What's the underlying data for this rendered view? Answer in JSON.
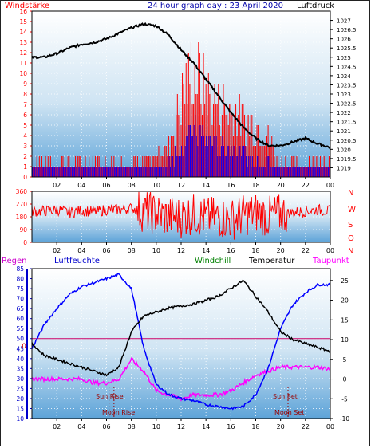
{
  "header": {
    "left_title": "Windstärke",
    "center_title": "24 hour graph day : 23 April 2020",
    "right_title": "Luftdruck"
  },
  "chart_data": [
    {
      "type": "line",
      "panel": "wind-pressure",
      "x_ticks": [
        "02",
        "04",
        "06",
        "08",
        "10",
        "12",
        "14",
        "16",
        "18",
        "20",
        "22",
        "00"
      ],
      "y_left": {
        "label": "Windstärke",
        "range": [
          0,
          16
        ],
        "ticks": [
          "0",
          "1",
          "2",
          "3",
          "4",
          "5",
          "6",
          "7",
          "8",
          "9",
          "10",
          "11",
          "12",
          "13",
          "14",
          "15",
          "16"
        ]
      },
      "y_right": {
        "label": "Luftdruck",
        "range": [
          1018.5,
          1027.5
        ],
        "ticks": [
          "1019",
          "1019.5",
          "1020",
          "1020.5",
          "1021",
          "1021.5",
          "1022",
          "1022.5",
          "1023",
          "1023.5",
          "1024",
          "1024.5",
          "1025",
          "1025.5",
          "1026",
          "1026.5",
          "1027"
        ]
      },
      "series": [
        {
          "name": "Luftdruck",
          "color": "#000000",
          "x": [
            0,
            1,
            2,
            3,
            4,
            5,
            6,
            7,
            8,
            9,
            10,
            11,
            12,
            13,
            14,
            15,
            16,
            17,
            18,
            19,
            20,
            21,
            22,
            23,
            24
          ],
          "values": [
            1025.0,
            1025.0,
            1025.2,
            1025.5,
            1025.7,
            1025.8,
            1026.0,
            1026.3,
            1026.6,
            1026.8,
            1026.7,
            1026.2,
            1025.4,
            1024.7,
            1023.8,
            1022.9,
            1022.0,
            1021.2,
            1020.6,
            1020.2,
            1020.2,
            1020.4,
            1020.6,
            1020.3,
            1020.1
          ]
        },
        {
          "name": "Böen",
          "color": "#ff0000",
          "x": [
            0,
            1,
            2,
            3,
            4,
            5,
            6,
            7,
            8,
            9,
            10,
            11,
            12,
            13,
            14,
            15,
            16,
            17,
            18,
            19,
            20,
            21,
            22,
            23,
            24
          ],
          "values": [
            2,
            2,
            2,
            2,
            2,
            2,
            2,
            2,
            2,
            2,
            3,
            4,
            11,
            15,
            12,
            10,
            9,
            8,
            7,
            5,
            2,
            2,
            2,
            3,
            2
          ]
        },
        {
          "name": "Mittel",
          "color": "#0000ff",
          "x": [
            0,
            1,
            2,
            3,
            4,
            5,
            6,
            7,
            8,
            9,
            10,
            11,
            12,
            13,
            14,
            15,
            16,
            17,
            18,
            19,
            20,
            21,
            22,
            23,
            24
          ],
          "values": [
            1,
            1,
            1,
            1,
            1,
            1,
            1,
            1,
            1,
            1,
            1,
            2,
            4,
            6,
            5,
            4,
            4,
            3,
            2,
            2,
            1,
            1,
            1,
            1,
            1
          ]
        }
      ]
    },
    {
      "type": "line",
      "panel": "wind-direction",
      "x_ticks": [
        "02",
        "04",
        "06",
        "08",
        "10",
        "12",
        "14",
        "16",
        "18",
        "20",
        "22",
        "00"
      ],
      "y_left": {
        "range": [
          0,
          360
        ],
        "ticks": [
          "0",
          "90",
          "180",
          "270",
          "360"
        ]
      },
      "y_right_labels": [
        "N",
        "W",
        "S",
        "O",
        "N"
      ],
      "series": [
        {
          "name": "Windrichtung",
          "color": "#ff0000",
          "x": [
            0,
            1,
            2,
            3,
            4,
            5,
            6,
            7,
            8,
            9,
            10,
            11,
            12,
            13,
            14,
            15,
            16,
            17,
            18,
            19,
            20,
            21,
            22,
            23,
            24
          ],
          "values": [
            220,
            220,
            230,
            210,
            225,
            215,
            230,
            230,
            240,
            220,
            200,
            180,
            180,
            200,
            170,
            180,
            160,
            190,
            210,
            180,
            200,
            210,
            220,
            230,
            220
          ]
        }
      ]
    },
    {
      "type": "line",
      "panel": "temperature-humidity",
      "x_ticks": [
        "02",
        "04",
        "06",
        "08",
        "10",
        "12",
        "14",
        "16",
        "18",
        "20",
        "22",
        "00"
      ],
      "y_left": {
        "label": "Luftfeuchte",
        "range": [
          10,
          85
        ],
        "ticks": [
          "10",
          "15",
          "20",
          "25",
          "30",
          "35",
          "40",
          "45",
          "50",
          "55",
          "60",
          "65",
          "70",
          "75",
          "80",
          "85"
        ]
      },
      "y_right": {
        "label": "Temperatur",
        "range": [
          -10,
          28
        ],
        "ticks": [
          "-10",
          "-5",
          "0",
          "5",
          "10",
          "15",
          "20",
          "25"
        ]
      },
      "labels": {
        "regen": "Regen",
        "luftfeuchte": "Luftfeuchte",
        "windchill": "Windchill",
        "temperatur": "Temperatur",
        "taupunkt": "Taupunkt",
        "zero_left": "0",
        "sun_rise": "Sun Rise",
        "moon_rise": "Moon Rise",
        "sun_set": "Sun Set",
        "moon_set": "Moon Set"
      },
      "events": {
        "sun_rise": 6.6,
        "moon_rise": 6.2,
        "sun_set": 20.6,
        "moon_set": 20.6
      },
      "series": [
        {
          "name": "Luftfeuchte",
          "color": "#0000ff",
          "axis": "left",
          "x": [
            0,
            1,
            2,
            3,
            4,
            5,
            6,
            7,
            8,
            9,
            10,
            11,
            12,
            13,
            14,
            15,
            16,
            17,
            18,
            19,
            20,
            21,
            22,
            23,
            24
          ],
          "values": [
            45,
            57,
            65,
            72,
            76,
            78,
            80,
            82,
            75,
            45,
            27,
            22,
            20,
            19,
            17,
            16,
            15,
            16,
            22,
            35,
            55,
            67,
            73,
            77,
            77
          ]
        },
        {
          "name": "Temperatur",
          "color": "#000000",
          "axis": "right",
          "x": [
            0,
            1,
            2,
            3,
            4,
            5,
            6,
            7,
            8,
            9,
            10,
            11,
            12,
            13,
            14,
            15,
            16,
            17,
            18,
            19,
            20,
            21,
            22,
            23,
            24
          ],
          "values": [
            9,
            6,
            5,
            4,
            3,
            2,
            1,
            3,
            12,
            16,
            17,
            18,
            18.5,
            19,
            20,
            21,
            23,
            25,
            21,
            17,
            12,
            10,
            9,
            8,
            7
          ]
        },
        {
          "name": "Taupunkt",
          "color": "#ff00ff",
          "axis": "right",
          "x": [
            0,
            1,
            2,
            3,
            4,
            5,
            6,
            7,
            8,
            9,
            10,
            11,
            12,
            13,
            14,
            15,
            16,
            17,
            18,
            19,
            20,
            21,
            22,
            23,
            24
          ],
          "values": [
            0,
            0,
            0,
            0,
            0,
            -1,
            -1,
            0,
            5,
            2,
            -3,
            -4,
            -5,
            -4,
            -4,
            -4,
            -3,
            -1,
            1,
            2,
            3,
            3,
            3,
            3,
            2.5
          ]
        },
        {
          "name": "Windchill",
          "color": "#008000",
          "axis": "right",
          "x": [
            0,
            24
          ],
          "values": [
            0,
            0
          ]
        }
      ]
    }
  ]
}
